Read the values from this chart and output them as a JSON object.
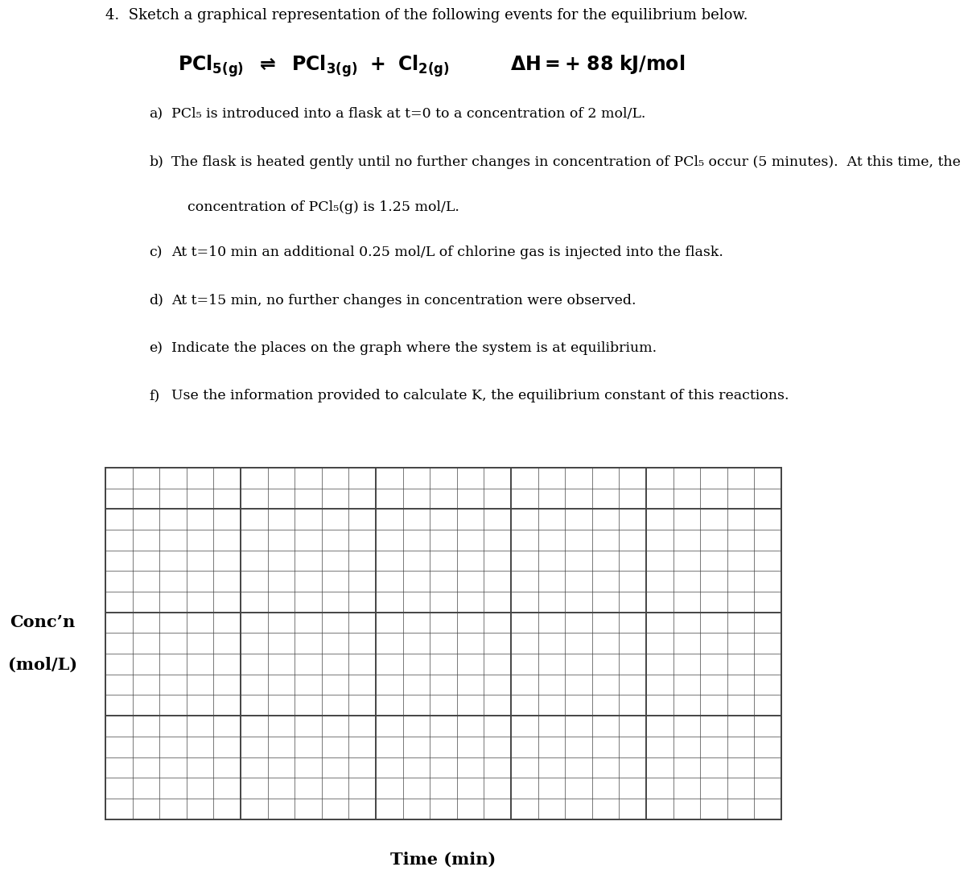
{
  "background_color": "#ffffff",
  "text_color": "#000000",
  "grid_color": "#444444",
  "ylabel_line1": "Conc’n",
  "ylabel_line2": "(mol/L)",
  "xlabel": "Time (min)",
  "grid_cols": 25,
  "grid_rows": 17,
  "minor_linewidth": 0.5,
  "major_linewidth": 1.4,
  "title": "4.  Sketch a graphical representation of the following events for the equilibrium below.",
  "title_fontsize": 13,
  "eq_fontsize": 17,
  "item_fontsize": 12.5,
  "items": [
    [
      "a)",
      "PCl₅ is introduced into a flask at t=0 to a concentration of 2 mol/L."
    ],
    [
      "b)",
      "The flask is heated gently until no further changes in concentration of PCl₅ occur (5 minutes).  At this time, the\nconcentration of PCl₅(g) is 1.25 mol/L."
    ],
    [
      "c)",
      "At t=10 min an additional 0.25 mol/L of chlorine gas is injected into the flask."
    ],
    [
      "d)",
      "At t=15 min, no further changes in concentration were observed."
    ],
    [
      "e)",
      "Indicate the places on the graph where the system is at equilibrium."
    ],
    [
      "f)",
      "Use the information provided to calculate K, the equilibrium constant of this reactions."
    ]
  ]
}
